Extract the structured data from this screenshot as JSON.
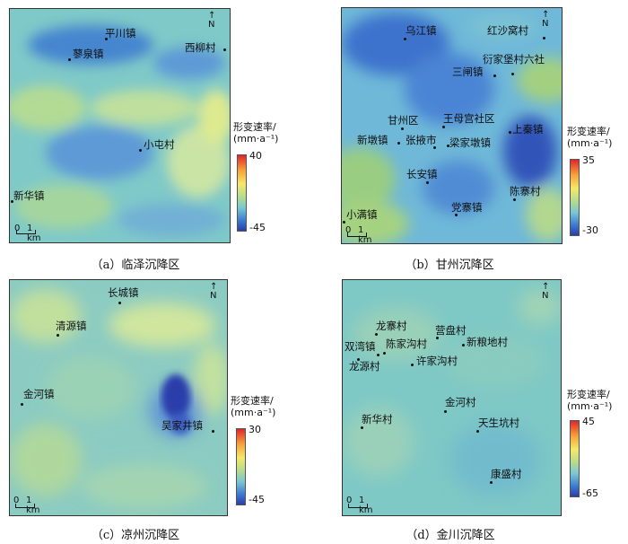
{
  "panels": [
    {
      "id": "a",
      "caption": "（a）临泽沉降区",
      "legend_title_1": "形变速率/",
      "legend_title_2": "(mm·a⁻¹)",
      "legend_max": "40",
      "legend_min": "-45",
      "north": "N",
      "scale_0": "0",
      "scale_1": "1 km",
      "places": [
        "平川镇",
        "蓼泉镇",
        "西柳村",
        "小屯村",
        "新华镇"
      ]
    },
    {
      "id": "b",
      "caption": "（b）甘州沉降区",
      "legend_title_1": "形变速率/",
      "legend_title_2": "(mm·a⁻¹)",
      "legend_max": "35",
      "legend_min": "-30",
      "north": "N",
      "scale_0": "0",
      "scale_1": "1 km",
      "places": [
        "乌江镇",
        "红沙窝村",
        "衍家堡村六社",
        "三闸镇",
        "甘州区",
        "王母宫社区",
        "上秦镇",
        "新墩镇",
        "张掖市",
        "梁家墩镇",
        "长安镇",
        "陈寨村",
        "小满镇",
        "党寨镇"
      ]
    },
    {
      "id": "c",
      "caption": "（c）凉州沉降区",
      "legend_title_1": "形变速率/",
      "legend_title_2": "(mm·a⁻¹)",
      "legend_max": "30",
      "legend_min": "-45",
      "north": "N",
      "scale_0": "0",
      "scale_1": "1 km",
      "places": [
        "长城镇",
        "清源镇",
        "金河镇",
        "吴家井镇"
      ]
    },
    {
      "id": "d",
      "caption": "（d）金川沉降区",
      "legend_title_1": "形变速率/",
      "legend_title_2": "(mm·a⁻¹)",
      "legend_max": "45",
      "legend_min": "-65",
      "north": "N",
      "scale_0": "0",
      "scale_1": "1 km",
      "places": [
        "龙寨村",
        "营盘村",
        "双湾镇",
        "陈家沟村",
        "新粮地村",
        "龙源村",
        "许家沟村",
        "金河村",
        "新华村",
        "天生坑村",
        "康盛村"
      ]
    }
  ],
  "colors": {
    "subsidence_strong": "#2a3dab",
    "subsidence": "#3d7ed1",
    "stable": "#79c6d4",
    "uplift_low": "#b5dc8e",
    "uplift_mid": "#f6e868",
    "uplift_high": "#e0262a"
  }
}
